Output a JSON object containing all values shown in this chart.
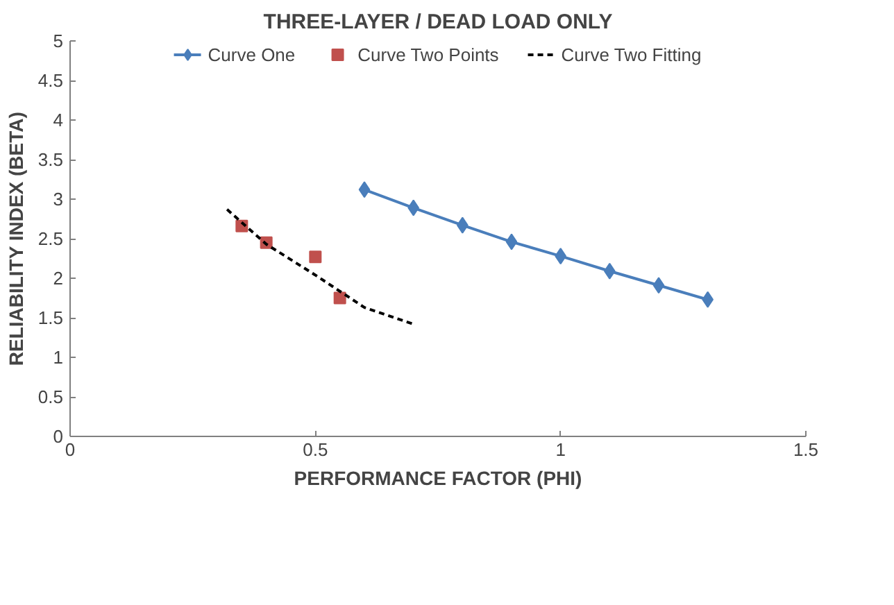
{
  "chart_data": {
    "type": "line",
    "title": "THREE-LAYER / DEAD LOAD ONLY",
    "xlabel": "PERFORMANCE FACTOR (PHI)",
    "ylabel": "RELIABILITY INDEX (BETA)",
    "xlim": [
      0,
      1.5
    ],
    "xticks": [
      0,
      0.5,
      1,
      1.5
    ],
    "ylim": [
      0,
      5
    ],
    "yticks": [
      0,
      0.5,
      1,
      1.5,
      2,
      2.5,
      3,
      3.5,
      4,
      4.5,
      5
    ],
    "grid": false,
    "legend": "top",
    "series": [
      {
        "name": "Curve One",
        "color": "#4a7ebb",
        "marker": "diamond",
        "line_style": "solid",
        "x": [
          0.6,
          0.7,
          0.8,
          0.9,
          1.0,
          1.1,
          1.2,
          1.3
        ],
        "values": [
          3.12,
          2.89,
          2.67,
          2.46,
          2.28,
          2.09,
          1.91,
          1.73
        ]
      },
      {
        "name": "Curve Two Points",
        "type": "scatter",
        "color": "#c0504d",
        "marker": "square",
        "x": [
          0.35,
          0.4,
          0.5,
          0.55
        ],
        "values": [
          2.66,
          2.45,
          2.27,
          1.75
        ]
      },
      {
        "name": "Curve Two Fitting",
        "color": "#000000",
        "marker": "none",
        "line_style": "dashed",
        "x": [
          0.32,
          0.4,
          0.5,
          0.6,
          0.7
        ],
        "values": [
          2.87,
          2.43,
          2.04,
          1.63,
          1.42
        ]
      }
    ]
  }
}
